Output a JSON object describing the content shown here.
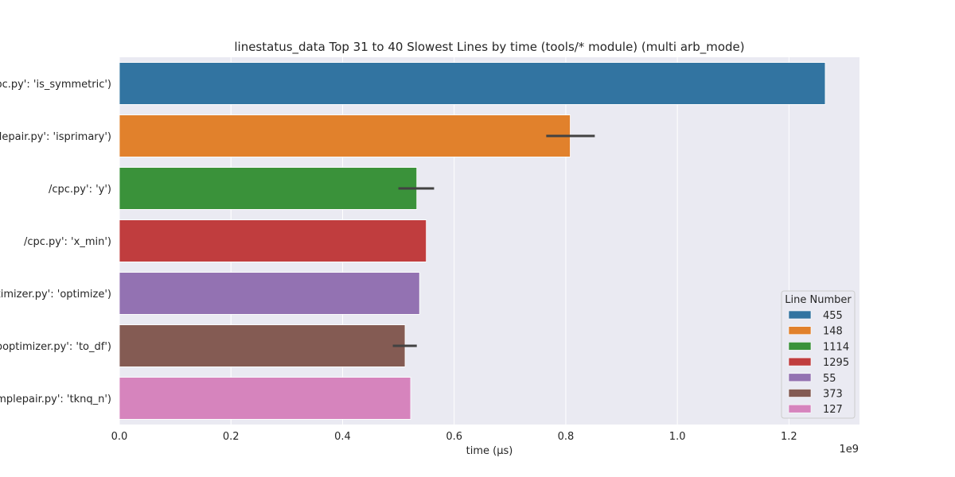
{
  "chart_data": {
    "type": "bar",
    "orientation": "horizontal",
    "title": "linestatus_data Top 31 to 40 Slowest Lines by time (tools/* module) (multi arb_mode)",
    "xlabel": "time (μs)",
    "x_offset_label": "1e9",
    "xlim": [
      0,
      1.3264
    ],
    "xticks": [
      0.0,
      0.2,
      0.4,
      0.6,
      0.8,
      1.0,
      1.2
    ],
    "xtick_labels": [
      "0.0",
      "0.2",
      "0.4",
      "0.6",
      "0.8",
      "1.0",
      "1.2"
    ],
    "grid": true,
    "categories": [
      "cpc.py': 'is_symmetric')",
      "nplepair.py': 'isprimary')",
      "/cpc.py': 'y')",
      "/cpc.py': 'x_min')",
      "optimizer.py': 'optimize')",
      "arboptimizer.py': 'to_df')",
      "simplepair.py': 'tknq_n')"
    ],
    "values": [
      1.265,
      0.808,
      0.533,
      0.55,
      0.538,
      0.512,
      0.522
    ],
    "error_bars": [
      null,
      [
        0.765,
        0.852
      ],
      [
        0.5,
        0.564
      ],
      null,
      null,
      [
        0.49,
        0.533
      ],
      null
    ],
    "colors": [
      "#3274a1",
      "#e1812c",
      "#3a923a",
      "#c03d3e",
      "#9372b2",
      "#845b53",
      "#d684bd"
    ],
    "legend": {
      "title": "Line Number",
      "position": "lower-right",
      "entries": [
        "455",
        "148",
        "1114",
        "1295",
        "55",
        "373",
        "127"
      ]
    }
  }
}
